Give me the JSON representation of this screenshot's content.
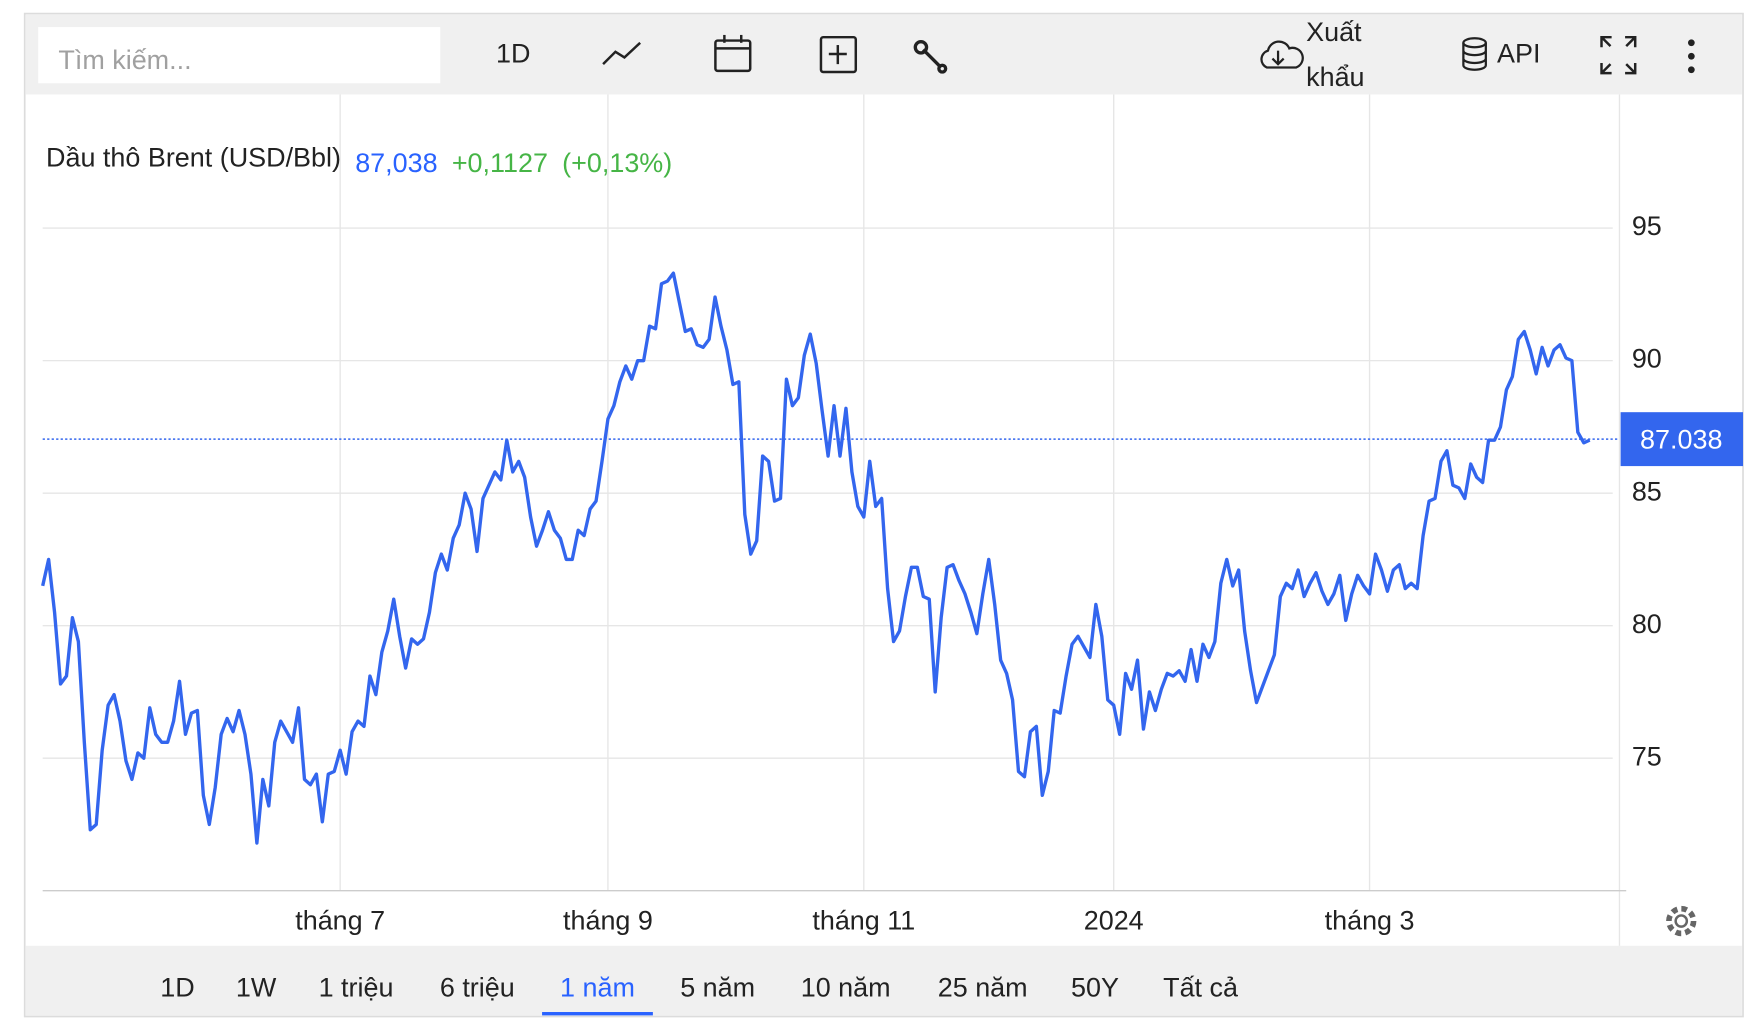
{
  "toolbar": {
    "search_placeholder": "Tìm kiếm...",
    "interval": "1D",
    "export_line1": "Xuất",
    "export_line2": "khẩu",
    "api": "API"
  },
  "chart_data": {
    "type": "line",
    "title": "Dầu thô Brent (USD/Bbl)",
    "price": "87,038",
    "change": "+0,1127",
    "change_pct": "(+0,13%)",
    "series": [
      {
        "color": "#3366ee",
        "values": [
          81.5,
          82.5,
          80.5,
          77.8,
          78.1,
          80.3,
          79.4,
          75.6,
          72.3,
          72.5,
          75.3,
          77.0,
          77.4,
          76.4,
          74.9,
          74.2,
          75.2,
          75.0,
          76.9,
          75.9,
          75.6,
          75.6,
          76.4,
          77.9,
          75.9,
          76.7,
          76.8,
          73.6,
          72.5,
          73.9,
          75.9,
          76.5,
          76.0,
          76.8,
          75.9,
          74.4,
          71.8,
          74.2,
          73.2,
          75.6,
          76.4,
          76.0,
          75.6,
          76.9,
          74.2,
          74.0,
          74.4,
          72.6,
          74.4,
          74.5,
          75.3,
          74.4,
          76.0,
          76.4,
          76.2,
          78.1,
          77.4,
          79.0,
          79.8,
          81.0,
          79.6,
          78.4,
          79.5,
          79.3,
          79.5,
          80.5,
          82.0,
          82.7,
          82.1,
          83.3,
          83.8,
          85.0,
          84.4,
          82.8,
          84.8,
          85.3,
          85.8,
          85.5,
          87.0,
          85.8,
          86.2,
          85.6,
          84.1,
          83.0,
          83.6,
          84.3,
          83.6,
          83.3,
          82.5,
          82.5,
          83.6,
          83.4,
          84.4,
          84.7,
          86.2,
          87.8,
          88.3,
          89.2,
          89.8,
          89.3,
          90.0,
          90.0,
          91.3,
          91.2,
          92.9,
          93.0,
          93.3,
          92.2,
          91.1,
          91.2,
          90.6,
          90.5,
          90.8,
          92.4,
          91.3,
          90.4,
          89.1,
          89.2,
          84.2,
          82.7,
          83.2,
          86.4,
          86.2,
          84.7,
          84.8,
          89.3,
          88.3,
          88.6,
          90.2,
          91.0,
          89.9,
          88.1,
          86.4,
          88.3,
          86.4,
          88.2,
          85.8,
          84.5,
          84.1,
          86.2,
          84.5,
          84.8,
          81.4,
          79.4,
          79.8,
          81.1,
          82.2,
          82.2,
          81.1,
          81.0,
          77.5,
          80.3,
          82.2,
          82.3,
          81.7,
          81.2,
          80.5,
          79.7,
          81.2,
          82.5,
          80.8,
          78.7,
          78.2,
          77.2,
          74.5,
          74.3,
          76.0,
          76.2,
          73.6,
          74.5,
          76.8,
          76.7,
          78.1,
          79.3,
          79.6,
          79.2,
          78.8,
          80.8,
          79.6,
          77.2,
          77.0,
          75.9,
          78.2,
          77.6,
          78.7,
          76.1,
          77.5,
          76.8,
          77.6,
          78.2,
          78.1,
          78.3,
          77.9,
          79.1,
          77.9,
          79.3,
          78.8,
          79.4,
          81.6,
          82.5,
          81.5,
          82.1,
          79.8,
          78.3,
          77.1,
          77.7,
          78.3,
          78.9,
          81.1,
          81.6,
          81.4,
          82.1,
          81.1,
          81.6,
          82.0,
          81.3,
          80.8,
          81.2,
          81.9,
          80.2,
          81.2,
          81.9,
          81.5,
          81.2,
          82.7,
          82.1,
          81.3,
          82.1,
          82.3,
          81.4,
          81.6,
          81.4,
          83.4,
          84.7,
          84.8,
          86.2,
          86.6,
          85.3,
          85.2,
          84.8,
          86.1,
          85.6,
          85.4,
          87.0,
          87.0,
          87.5,
          88.9,
          89.4,
          90.8,
          91.1,
          90.4,
          89.5,
          90.5,
          89.8,
          90.4,
          90.6,
          90.1,
          90.0,
          87.3,
          86.9,
          87.0
        ]
      }
    ],
    "xlim": [
      0,
      265
    ],
    "xticks": [
      {
        "value": 50,
        "label": "tháng 7"
      },
      {
        "value": 95,
        "label": "tháng 9"
      },
      {
        "value": 138,
        "label": "tháng 11"
      },
      {
        "value": 180,
        "label": "2024"
      },
      {
        "value": 223,
        "label": "tháng 3"
      }
    ],
    "ylim": [
      70,
      100
    ],
    "yticks": [
      75,
      80,
      85,
      90,
      95
    ],
    "grid": true,
    "last_price": {
      "value": 87.038,
      "label": "87.038"
    }
  },
  "ranges": [
    "1D",
    "1W",
    "1 triệu",
    "6 triệu",
    "1 năm",
    "5 năm",
    "10 năm",
    "25 năm",
    "50Y",
    "Tất cả"
  ],
  "active_range": 4
}
